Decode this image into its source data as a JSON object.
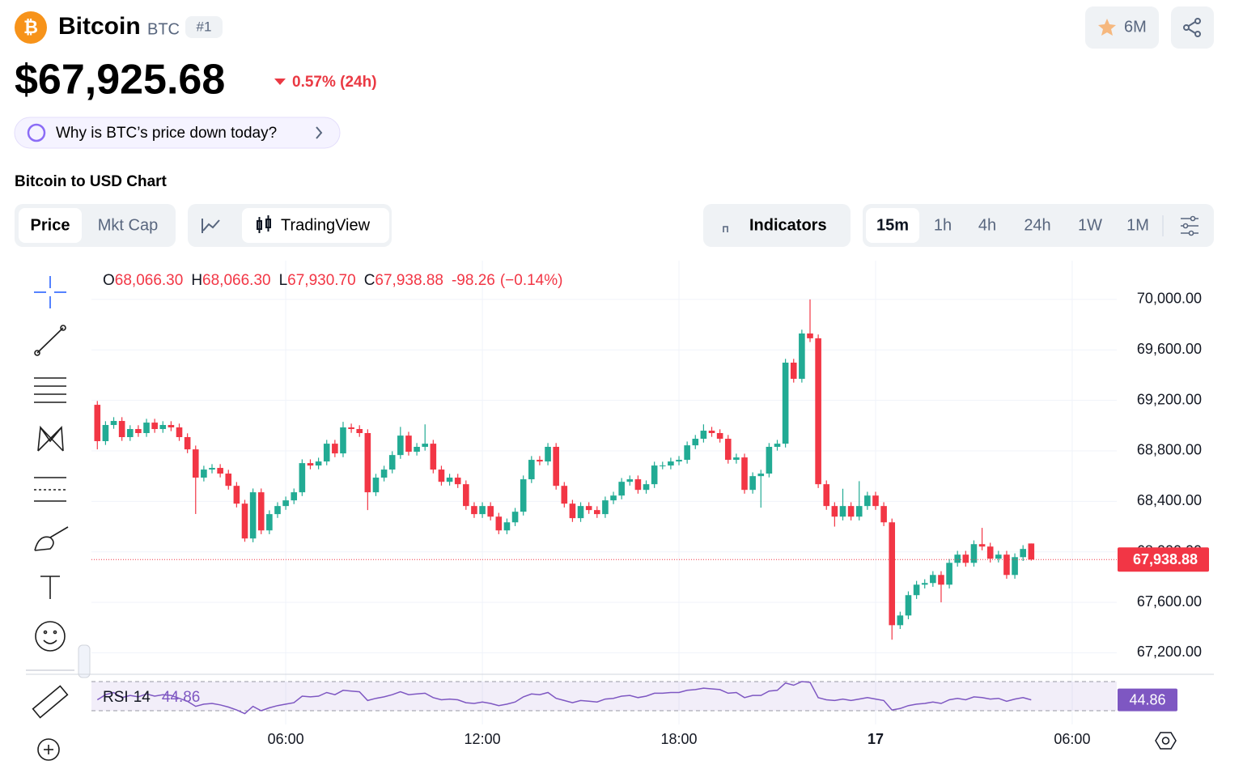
{
  "header": {
    "name": "Bitcoin",
    "symbol": "BTC",
    "rank": "#1",
    "watchlist": "6M",
    "price": "$67,925.68",
    "change": "0.57% (24h)",
    "question": "Why is BTC’s price down today?",
    "chart_title": "Bitcoin to USD Chart"
  },
  "tabs": {
    "data": [
      "Price",
      "Mkt Cap"
    ],
    "view": "TradingView",
    "indicators": "Indicators",
    "timeframes": [
      "15m",
      "1h",
      "4h",
      "24h",
      "1W",
      "1M"
    ]
  },
  "chart_data": {
    "type": "candlestick",
    "x": [
      0.25,
      0.5,
      0.75,
      1,
      1.25,
      1.5,
      1.75,
      2,
      2.25,
      2.5,
      2.75,
      3,
      3.25,
      3.5,
      3.75,
      4,
      4.25,
      4.5,
      4.75,
      5,
      5.25,
      5.5,
      5.75,
      6,
      6.25,
      6.5,
      6.75,
      7,
      7.25,
      7.5,
      7.75,
      8,
      8.25,
      8.5,
      8.75,
      9,
      9.25,
      9.5,
      9.75,
      10,
      10.25,
      10.5,
      10.75,
      11,
      11.25,
      11.5,
      11.75,
      12,
      12.25,
      12.5,
      12.75,
      13,
      13.25,
      13.5,
      13.75,
      14,
      14.25,
      14.5,
      14.75,
      15,
      15.25,
      15.5,
      15.75,
      16,
      16.25,
      16.5,
      16.75,
      17,
      17.25,
      17.5,
      17.75,
      18,
      18.25,
      18.5,
      18.75,
      19,
      19.25,
      19.5,
      19.75,
      20,
      20.25,
      20.5,
      20.75,
      21,
      21.25,
      21.5,
      21.75,
      22,
      22.25,
      22.5,
      22.75,
      23,
      23.25,
      23.5,
      23.75,
      24,
      24.25,
      24.5,
      24.75,
      25,
      25.25,
      25.5,
      25.75,
      26,
      26.25,
      26.5,
      26.75,
      27,
      27.25,
      27.5,
      27.75,
      28,
      28.25,
      28.5,
      28.75
    ],
    "open": [
      69165,
      68877,
      69005,
      69037,
      68909,
      68973,
      68941,
      69024,
      68973,
      69005,
      68986,
      68909,
      68812,
      68588,
      68652,
      68665,
      68620,
      68523,
      68382,
      68106,
      68472,
      68170,
      68299,
      68363,
      68408,
      68472,
      68703,
      68684,
      68716,
      68857,
      68780,
      68986,
      68973,
      68941,
      68472,
      68588,
      68652,
      68767,
      68921,
      68793,
      68832,
      68857,
      68652,
      68555,
      68588,
      68536,
      68363,
      68299,
      68363,
      68279,
      68170,
      68234,
      68318,
      68575,
      68729,
      68716,
      68832,
      68523,
      68382,
      68267,
      68363,
      68331,
      68299,
      68408,
      68446,
      68555,
      68575,
      68491,
      68536,
      68684,
      68684,
      68716,
      68729,
      68844,
      68896,
      68960,
      68941,
      68896,
      68729,
      68748,
      68491,
      68600,
      68620,
      68832,
      68857,
      69499,
      69371,
      69730,
      69692,
      68536,
      68363,
      68279,
      68363,
      68279,
      68363,
      68446,
      68363,
      68234,
      67419,
      67496,
      67657,
      67740,
      67753,
      67817,
      67740,
      67913,
      67978,
      67913,
      68061,
      68042,
      67946,
      67978,
      67817,
      67958,
      68066.3
    ],
    "high": [
      69195,
      69035,
      69067,
      69067,
      69003,
      69003,
      69054,
      69054,
      69035,
      69035,
      69016,
      68939,
      68842,
      68682,
      68695,
      68695,
      68650,
      68553,
      68412,
      68502,
      68502,
      68329,
      68393,
      68438,
      68502,
      68733,
      68733,
      68746,
      68887,
      68887,
      69030,
      69016,
      69003,
      68971,
      68618,
      68682,
      68797,
      68990,
      68951,
      68862,
      69010,
      68887,
      68682,
      68618,
      68618,
      68566,
      68393,
      68393,
      68393,
      68309,
      68264,
      68348,
      68605,
      68759,
      68759,
      68862,
      68862,
      68553,
      68412,
      68393,
      68393,
      68361,
      68438,
      68476,
      68585,
      68605,
      68605,
      68566,
      68714,
      68714,
      68746,
      68759,
      68874,
      68926,
      69010,
      68990,
      68971,
      68926,
      68778,
      68778,
      68630,
      68650,
      68862,
      68887,
      69529,
      69529,
      69760,
      70000,
      69722,
      68566,
      68393,
      68500,
      68393,
      68560,
      68476,
      68476,
      68393,
      68264,
      67526,
      67687,
      67770,
      67783,
      67847,
      67847,
      67943,
      68008,
      68008,
      68091,
      68190,
      68072,
      68008,
      68008,
      67988,
      68053,
      68066.3
    ],
    "low": [
      68812,
      68847,
      68975,
      68879,
      68879,
      68911,
      68911,
      68943,
      68943,
      68956,
      68879,
      68782,
      68300,
      68558,
      68622,
      68590,
      68493,
      68352,
      68080,
      68076,
      68140,
      68140,
      68269,
      68333,
      68378,
      68442,
      68654,
      68654,
      68686,
      68750,
      68750,
      68943,
      68911,
      68331,
      68442,
      68558,
      68622,
      68737,
      68763,
      68763,
      68802,
      68622,
      68525,
      68525,
      68506,
      68333,
      68269,
      68269,
      68249,
      68140,
      68140,
      68204,
      68288,
      68545,
      68686,
      68686,
      68493,
      68352,
      68237,
      68237,
      68301,
      68269,
      68269,
      68378,
      68416,
      68525,
      68461,
      68461,
      68506,
      68654,
      68654,
      68686,
      68699,
      68814,
      68866,
      68911,
      68866,
      68699,
      68699,
      68461,
      68461,
      68350,
      68590,
      68802,
      68827,
      69341,
      69341,
      69662,
      68506,
      68333,
      68200,
      68249,
      68249,
      68249,
      68333,
      68333,
      68204,
      67304,
      67389,
      67466,
      67627,
      67710,
      67723,
      67600,
      67710,
      67883,
      67883,
      67883,
      68012,
      67916,
      67916,
      67787,
      67787,
      67928,
      67930.7
    ],
    "close": [
      68877,
      69005,
      69037,
      68909,
      68973,
      68941,
      69024,
      68973,
      69005,
      68986,
      68909,
      68812,
      68588,
      68652,
      68665,
      68620,
      68523,
      68382,
      68106,
      68472,
      68170,
      68299,
      68363,
      68408,
      68472,
      68703,
      68684,
      68716,
      68857,
      68780,
      68986,
      68973,
      68941,
      68472,
      68588,
      68652,
      68767,
      68921,
      68793,
      68832,
      68857,
      68652,
      68555,
      68588,
      68536,
      68363,
      68299,
      68363,
      68279,
      68170,
      68234,
      68318,
      68575,
      68729,
      68716,
      68832,
      68523,
      68382,
      68267,
      68363,
      68331,
      68299,
      68408,
      68446,
      68555,
      68575,
      68491,
      68536,
      68684,
      68684,
      68716,
      68729,
      68844,
      68896,
      68960,
      68941,
      68896,
      68729,
      68748,
      68491,
      68600,
      68620,
      68832,
      68857,
      69499,
      69371,
      69730,
      69692,
      68536,
      68363,
      68279,
      68363,
      68279,
      68363,
      68446,
      68363,
      68234,
      67419,
      67496,
      67657,
      67740,
      67753,
      67817,
      67740,
      67913,
      67978,
      67913,
      68061,
      68042,
      67946,
      67978,
      67817,
      67958,
      68023,
      67938.88
    ],
    "up_color": "#22ab94",
    "down_color": "#f23645",
    "xlim": [
      0.07,
      31.36
    ],
    "xticks": [
      {
        "value": 6,
        "label": "06:00"
      },
      {
        "value": 12,
        "label": "12:00"
      },
      {
        "value": 18,
        "label": "18:00"
      },
      {
        "value": 24,
        "label": "17"
      },
      {
        "value": 30,
        "label": "06:00"
      }
    ],
    "ylim": [
      67030,
      70230
    ],
    "yticks": [
      {
        "value": 67200,
        "label": "67,200.00"
      },
      {
        "value": 67600,
        "label": "67,600.00"
      },
      {
        "value": 68000,
        "label": "68,000.00"
      },
      {
        "value": 68400,
        "label": "68,400.00"
      },
      {
        "value": 68800,
        "label": "68,800.00"
      },
      {
        "value": 69200,
        "label": "69,200.00"
      },
      {
        "value": 69600,
        "label": "69,600.00"
      },
      {
        "value": 70000,
        "label": "70,000.00"
      }
    ],
    "grid": true,
    "ohlc_prefixes": [
      "O",
      "H",
      "L",
      "C"
    ],
    "last_labels": {
      "open": "68,066.30",
      "high": "68,066.30",
      "low": "67,930.70",
      "close": "67,938.88",
      "change": "-98.26",
      "change_pct": "(−0.14%)"
    },
    "rsi": {
      "name": "RSI",
      "period": 14,
      "color": "#7e57c2",
      "ylim": [
        20,
        80
      ],
      "bands": [
        30,
        70
      ],
      "values": [
        45,
        52,
        55,
        48,
        51,
        49,
        53,
        50,
        52,
        51,
        47,
        43,
        36,
        39,
        40,
        38,
        35,
        31,
        26,
        36,
        30,
        34,
        37,
        39,
        41,
        50,
        49,
        50,
        55,
        52,
        58,
        57,
        56,
        44,
        47,
        49,
        52,
        56,
        52,
        53,
        54,
        48,
        45,
        46,
        45,
        41,
        40,
        42,
        40,
        37,
        39,
        42,
        49,
        53,
        52,
        55,
        47,
        44,
        41,
        44,
        43,
        42,
        46,
        47,
        50,
        51,
        48,
        50,
        54,
        54,
        55,
        55,
        58,
        59,
        61,
        60,
        59,
        54,
        55,
        48,
        51,
        51,
        57,
        58,
        68,
        65,
        70,
        69,
        48,
        45,
        44,
        46,
        44,
        46,
        48,
        46,
        44,
        31,
        33,
        37,
        39,
        40,
        42,
        40,
        45,
        47,
        45,
        49,
        48,
        46,
        47,
        43,
        46,
        48,
        44.86
      ]
    }
  }
}
